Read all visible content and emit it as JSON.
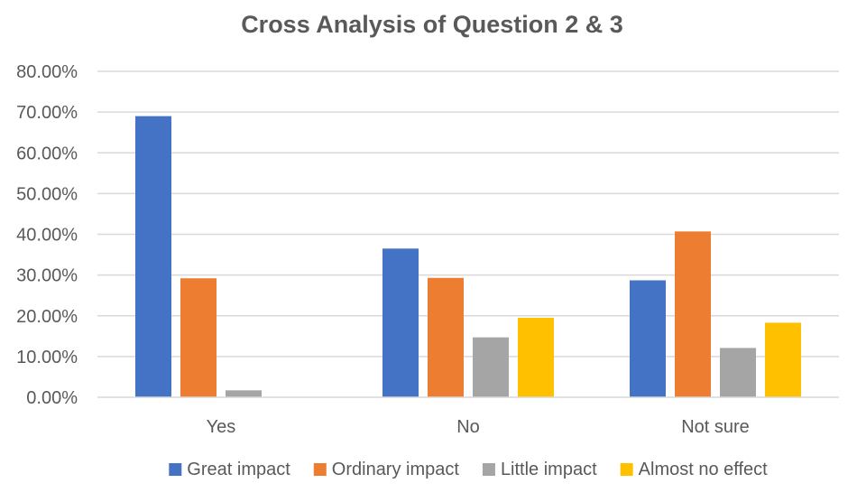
{
  "chart_data": {
    "type": "bar",
    "title": "Cross Analysis of Question 2 & 3",
    "xlabel": "",
    "ylabel": "",
    "categories": [
      "Yes",
      "No",
      "Not sure"
    ],
    "series": [
      {
        "name": "Great impact",
        "color": "#4472C4",
        "values": [
          0.69,
          0.365,
          0.287
        ]
      },
      {
        "name": "Ordinary impact",
        "color": "#ED7D31",
        "values": [
          0.292,
          0.293,
          0.407
        ]
      },
      {
        "name": "Little impact",
        "color": "#A5A5A5",
        "values": [
          0.017,
          0.147,
          0.121
        ]
      },
      {
        "name": "Almost no effect",
        "color": "#FFC000",
        "values": [
          0,
          0.195,
          0.183
        ]
      }
    ],
    "ylim": [
      0,
      0.8
    ],
    "yticks": [
      "0.00%",
      "10.00%",
      "20.00%",
      "30.00%",
      "40.00%",
      "50.00%",
      "60.00%",
      "70.00%",
      "80.00%"
    ],
    "grid": true,
    "legend_position": "bottom"
  }
}
